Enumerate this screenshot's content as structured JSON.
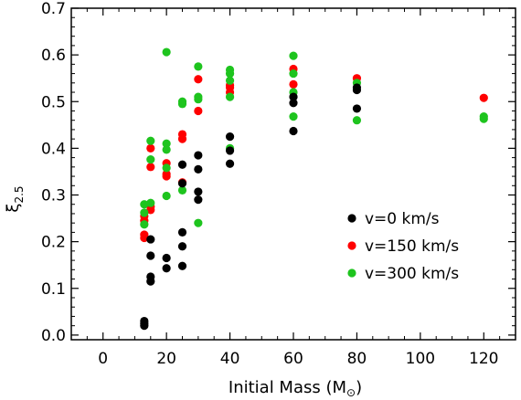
{
  "chart_data": {
    "type": "scatter",
    "title": "",
    "xlabel_main": "Initial Mass (M",
    "xlabel_symbol": "⊙",
    "xlabel_close": ")",
    "ylabel_main": "ξ",
    "ylabel_sub": "2.5",
    "xlim": [
      -10,
      130
    ],
    "ylim": [
      -0.01,
      0.7
    ],
    "xticks": [
      0,
      20,
      40,
      60,
      80,
      100,
      120
    ],
    "xtick_labels": [
      "0",
      "20",
      "40",
      "60",
      "80",
      "100",
      "120"
    ],
    "yticks": [
      0.0,
      0.1,
      0.2,
      0.3,
      0.4,
      0.5,
      0.6,
      0.7
    ],
    "ytick_labels": [
      "0.0",
      "0.1",
      "0.2",
      "0.3",
      "0.4",
      "0.5",
      "0.6",
      "0.7"
    ],
    "grid": false,
    "legend_position": "right",
    "series": [
      {
        "name": "v=0 km/s",
        "color": "#000000",
        "points": [
          [
            13,
            0.02
          ],
          [
            13,
            0.025
          ],
          [
            13,
            0.03
          ],
          [
            15,
            0.205
          ],
          [
            15,
            0.17
          ],
          [
            15,
            0.125
          ],
          [
            15,
            0.115
          ],
          [
            20,
            0.165
          ],
          [
            20,
            0.143
          ],
          [
            25,
            0.365
          ],
          [
            25,
            0.325
          ],
          [
            25,
            0.22
          ],
          [
            25,
            0.19
          ],
          [
            25,
            0.148
          ],
          [
            30,
            0.385
          ],
          [
            30,
            0.355
          ],
          [
            30,
            0.307
          ],
          [
            30,
            0.29
          ],
          [
            40,
            0.425
          ],
          [
            40,
            0.395
          ],
          [
            40,
            0.367
          ],
          [
            60,
            0.51
          ],
          [
            60,
            0.497
          ],
          [
            60,
            0.437
          ],
          [
            80,
            0.53
          ],
          [
            80,
            0.525
          ],
          [
            80,
            0.485
          ]
        ]
      },
      {
        "name": "v=150 km/s",
        "color": "#ff0000",
        "points": [
          [
            13,
            0.255
          ],
          [
            13,
            0.245
          ],
          [
            13,
            0.215
          ],
          [
            13,
            0.208
          ],
          [
            15,
            0.4
          ],
          [
            15,
            0.36
          ],
          [
            15,
            0.275
          ],
          [
            15,
            0.268
          ],
          [
            20,
            0.368
          ],
          [
            20,
            0.345
          ],
          [
            20,
            0.34
          ],
          [
            25,
            0.43
          ],
          [
            25,
            0.42
          ],
          [
            25,
            0.327
          ],
          [
            30,
            0.548
          ],
          [
            30,
            0.48
          ],
          [
            40,
            0.535
          ],
          [
            40,
            0.53
          ],
          [
            40,
            0.52
          ],
          [
            60,
            0.57
          ],
          [
            60,
            0.537
          ],
          [
            80,
            0.55
          ],
          [
            120,
            0.508
          ]
        ]
      },
      {
        "name": "v=300 km/s",
        "color": "#1ec41e",
        "points": [
          [
            13,
            0.28
          ],
          [
            13,
            0.262
          ],
          [
            13,
            0.237
          ],
          [
            15,
            0.416
          ],
          [
            15,
            0.376
          ],
          [
            15,
            0.283
          ],
          [
            20,
            0.606
          ],
          [
            20,
            0.41
          ],
          [
            20,
            0.397
          ],
          [
            20,
            0.358
          ],
          [
            20,
            0.298
          ],
          [
            25,
            0.5
          ],
          [
            25,
            0.495
          ],
          [
            25,
            0.31
          ],
          [
            30,
            0.575
          ],
          [
            30,
            0.51
          ],
          [
            30,
            0.505
          ],
          [
            30,
            0.24
          ],
          [
            40,
            0.568
          ],
          [
            40,
            0.56
          ],
          [
            40,
            0.545
          ],
          [
            40,
            0.51
          ],
          [
            40,
            0.4
          ],
          [
            60,
            0.598
          ],
          [
            60,
            0.56
          ],
          [
            60,
            0.52
          ],
          [
            60,
            0.468
          ],
          [
            80,
            0.54
          ],
          [
            80,
            0.46
          ],
          [
            120,
            0.468
          ],
          [
            120,
            0.463
          ]
        ]
      }
    ]
  }
}
